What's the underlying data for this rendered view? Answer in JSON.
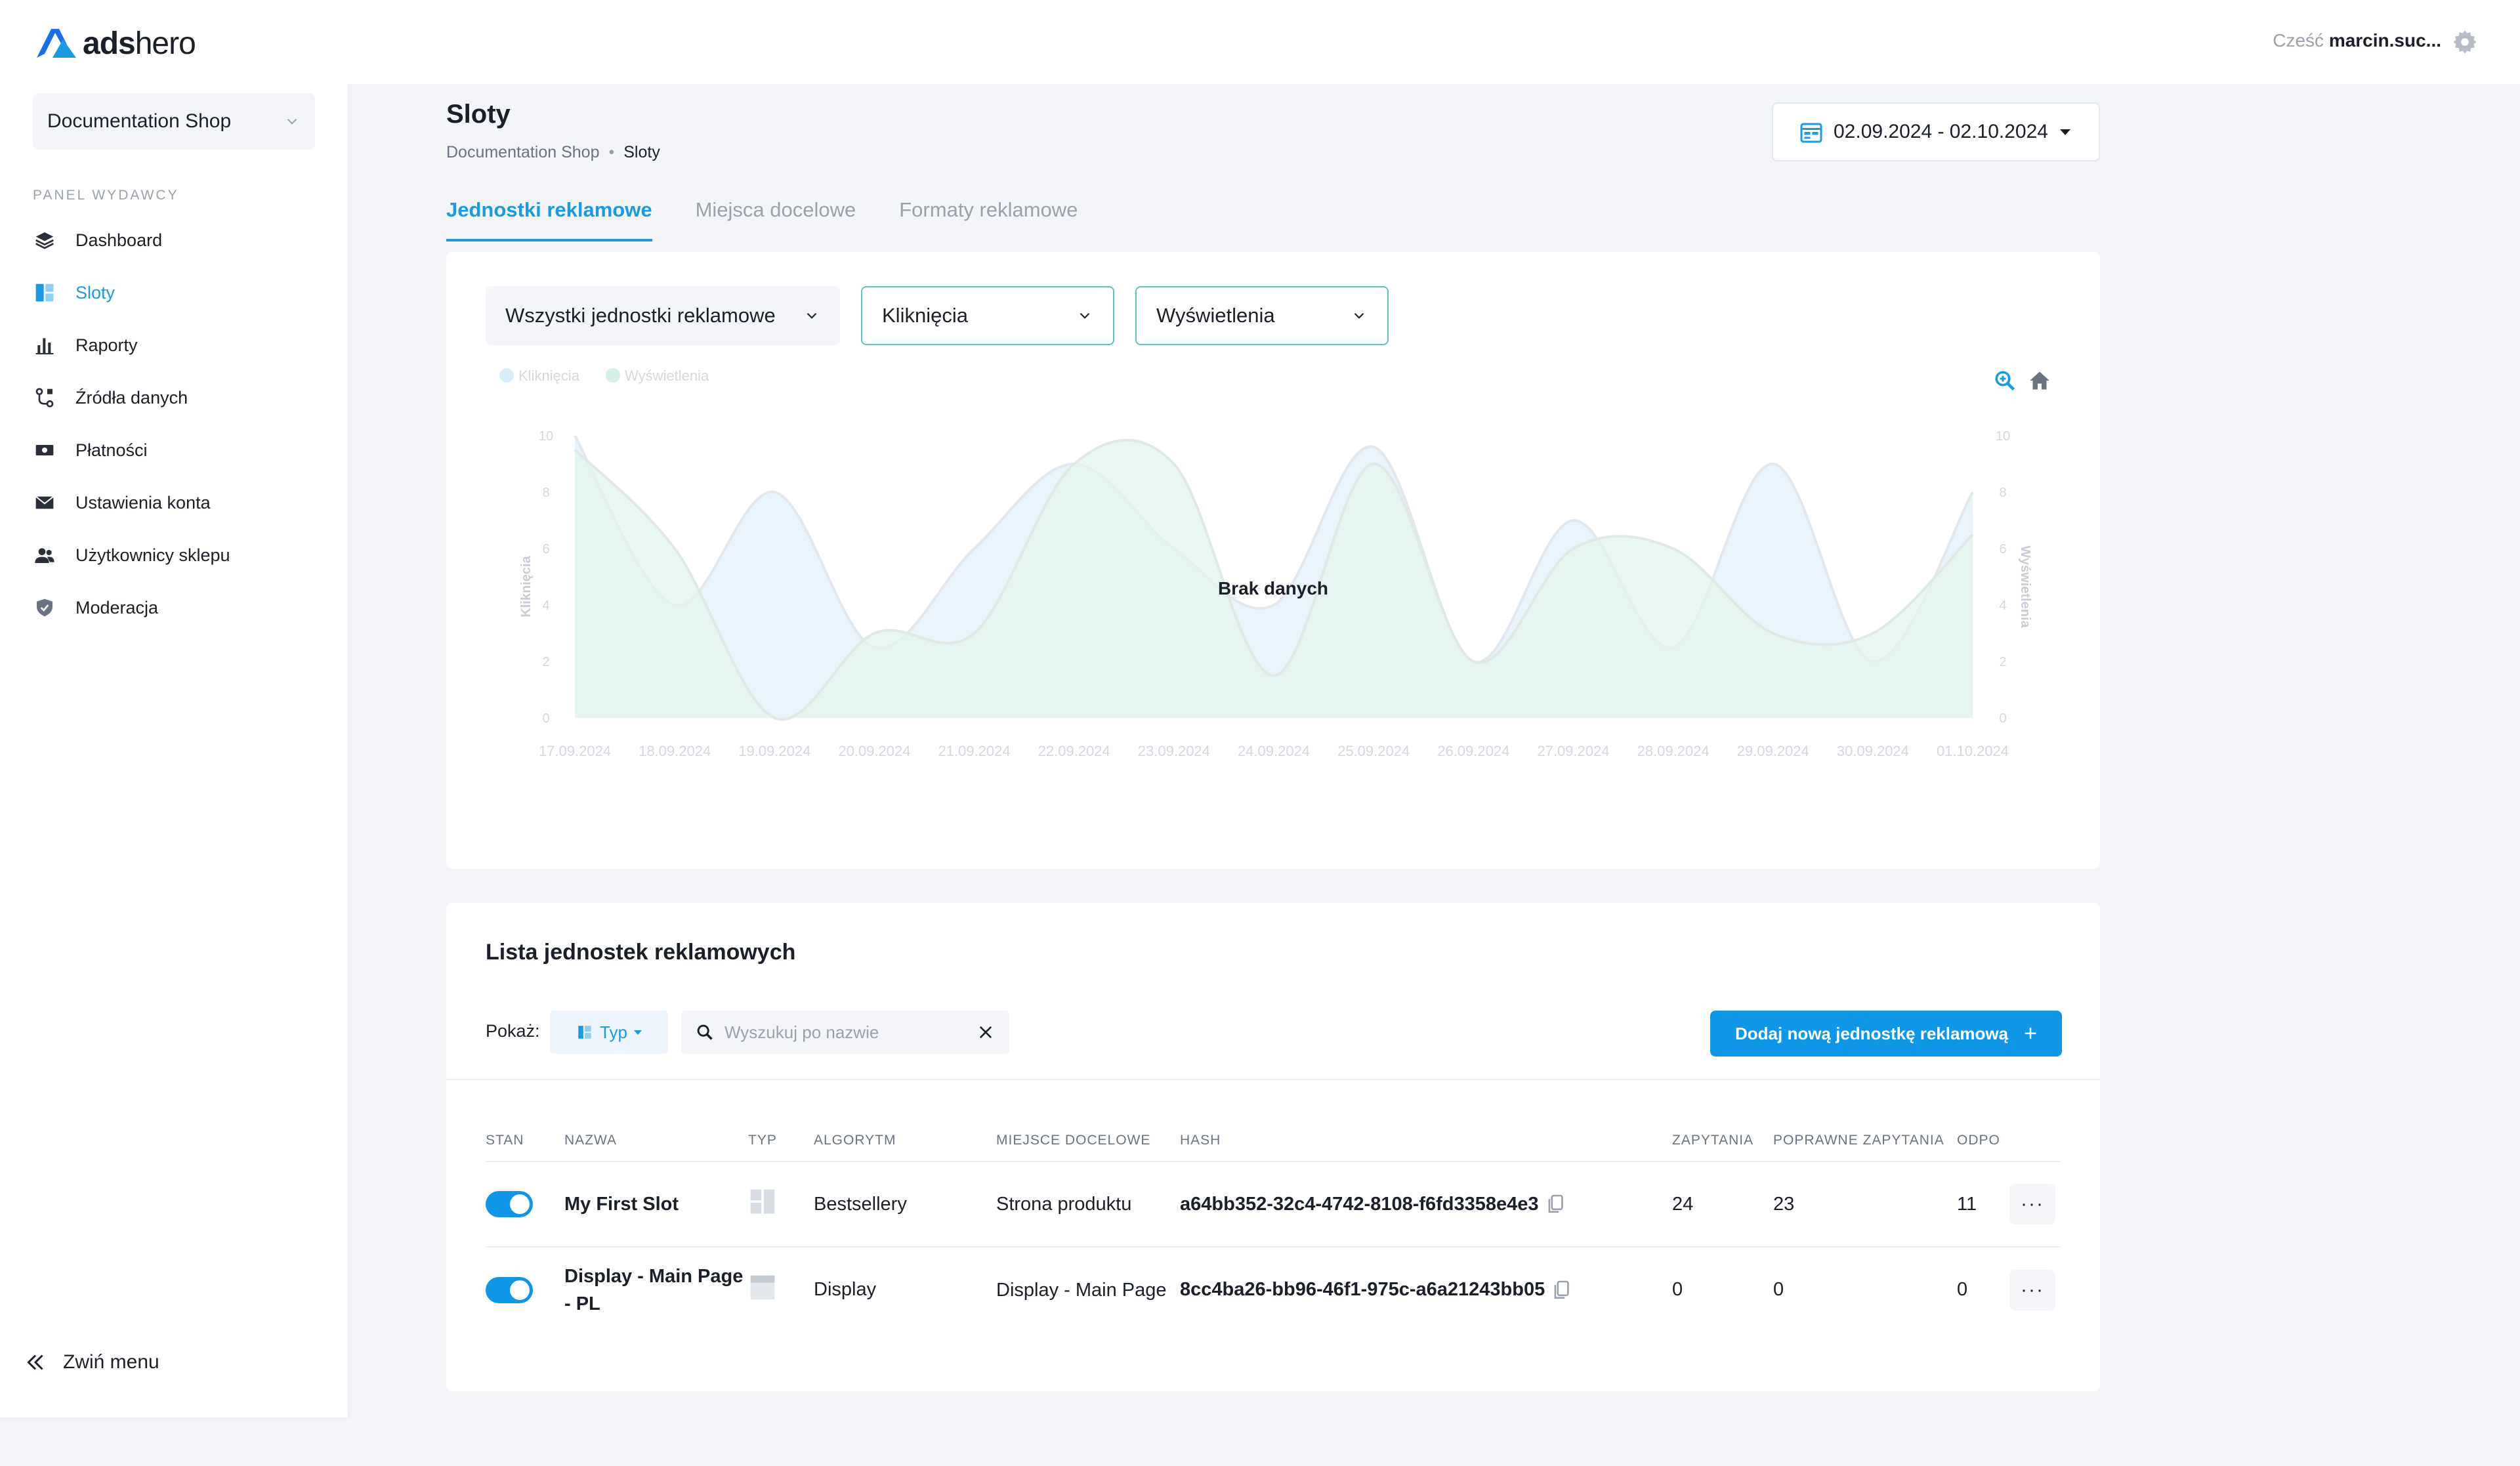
{
  "brand": {
    "name_bold": "ads",
    "name_light": "hero"
  },
  "sidebar": {
    "shop_name": "Documentation Shop",
    "section_label": "PANEL WYDAWCY",
    "items": [
      {
        "label": "Dashboard",
        "icon": "layers-icon"
      },
      {
        "label": "Sloty",
        "icon": "slots-icon",
        "active": true
      },
      {
        "label": "Raporty",
        "icon": "bar-chart-icon"
      },
      {
        "label": "Źródła danych",
        "icon": "data-source-icon"
      },
      {
        "label": "Płatności",
        "icon": "cash-icon"
      },
      {
        "label": "Ustawienia konta",
        "icon": "envelope-icon"
      },
      {
        "label": "Użytkownicy sklepu",
        "icon": "users-icon"
      },
      {
        "label": "Moderacja",
        "icon": "shield-icon"
      }
    ],
    "collapse_label": "Zwiń menu"
  },
  "topbar": {
    "greeting": "Cześć",
    "user": "marcin.suc..."
  },
  "header": {
    "title": "Sloty",
    "breadcrumb": [
      "Documentation Shop",
      "Sloty"
    ],
    "date_range": "02.09.2024 - 02.10.2024"
  },
  "tabs": [
    "Jednostki reklamowe",
    "Miejsca docelowe",
    "Formaty reklamowe"
  ],
  "filters": {
    "units": "Wszystki jednostki reklamowe",
    "metric_left": "Kliknięcia",
    "metric_right": "Wyświetlenia"
  },
  "chart_data": {
    "type": "area",
    "overlay_text": "Brak danych",
    "legend": [
      "Kliknięcia",
      "Wyświetlenia"
    ],
    "ylabel_left": "Kliknięcia",
    "ylabel_right": "Wyświetlenia",
    "yticks": [
      0,
      2,
      4,
      6,
      8,
      10
    ],
    "ylim": [
      0,
      10
    ],
    "categories": [
      "17.09.2024",
      "18.09.2024",
      "19.09.2024",
      "20.09.2024",
      "21.09.2024",
      "22.09.2024",
      "23.09.2024",
      "24.09.2024",
      "25.09.2024",
      "26.09.2024",
      "27.09.2024",
      "28.09.2024",
      "29.09.2024",
      "30.09.2024",
      "01.10.2024"
    ],
    "series": [
      {
        "name": "Kliknięcia",
        "color": "#e3f0fb",
        "values": [
          10,
          4,
          8,
          2.5,
          6,
          9,
          6,
          4,
          9.6,
          2,
          7,
          2.5,
          9,
          2,
          8
        ]
      },
      {
        "name": "Wyświetlenia",
        "color": "#e2f5ef",
        "values": [
          9.5,
          6,
          0,
          3,
          3,
          9,
          9,
          1.5,
          9,
          2,
          6,
          6,
          3,
          3,
          6.5
        ]
      }
    ]
  },
  "list": {
    "title": "Lista jednostek reklamowych",
    "show_label": "Pokaż:",
    "type_filter": "Typ",
    "search_placeholder": "Wyszukuj po nazwie",
    "add_button": "Dodaj nową jednostkę reklamową",
    "columns": [
      "STAN",
      "NAZWA",
      "TYP",
      "ALGORYTM",
      "MIEJSCE DOCELOWE",
      "HASH",
      "ZAPYTANIA",
      "POPRAWNE ZAPYTANIA",
      "ODPO"
    ],
    "rows": [
      {
        "name": "My First Slot",
        "algorithm": "Bestsellery",
        "placement": "Strona produktu",
        "hash": "a64bb352-32c4-4742-8108-f6fd3358e4e3",
        "requests": "24",
        "valid_requests": "23",
        "responses": "11"
      },
      {
        "name": "Display - Main Page - PL",
        "algorithm": "Display",
        "placement": "Display - Main Page",
        "hash": "8cc4ba26-bb96-46f1-975c-a6a21243bb05",
        "requests": "0",
        "valid_requests": "0",
        "responses": "0"
      }
    ]
  },
  "colors": {
    "accent": "#1b9ae0",
    "button": "#0f97e6",
    "teal_outline": "#5fc3bd"
  }
}
